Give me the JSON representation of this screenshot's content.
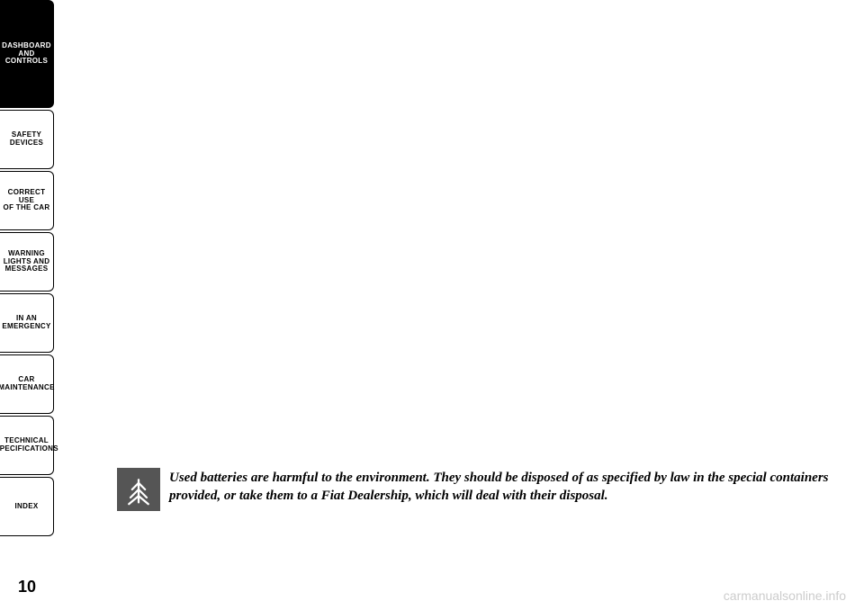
{
  "sidebar": {
    "tabs": [
      {
        "label": "DASHBOARD\nAND CONTROLS",
        "active": true
      },
      {
        "label": "SAFETY\nDEVICES",
        "active": false
      },
      {
        "label": "CORRECT USE\nOF THE CAR",
        "active": false
      },
      {
        "label": "WARNING\nLIGHTS AND\nMESSAGES",
        "active": false
      },
      {
        "label": "IN AN\nEMERGENCY",
        "active": false
      },
      {
        "label": "CAR\nMAINTENANCE",
        "active": false
      },
      {
        "label": "TECHNICAL\nSPECIFICATIONS",
        "active": false
      },
      {
        "label": "INDEX",
        "active": false
      }
    ]
  },
  "warning": {
    "text": "Used batteries are harmful to the environment. They should be disposed of as specified by law in the special containers provided, or take them to a Fiat Dealership, which will deal with their disposal."
  },
  "page_number": "10",
  "watermark": "carmanualsonline.info",
  "colors": {
    "background": "#ffffff",
    "tab_active_bg": "#000000",
    "tab_active_text": "#ffffff",
    "tab_inactive_bg": "#ffffff",
    "tab_inactive_text": "#000000",
    "tab_border": "#000000",
    "icon_bg": "#555555",
    "icon_fg": "#ffffff",
    "text": "#000000",
    "watermark": "#cccccc"
  }
}
